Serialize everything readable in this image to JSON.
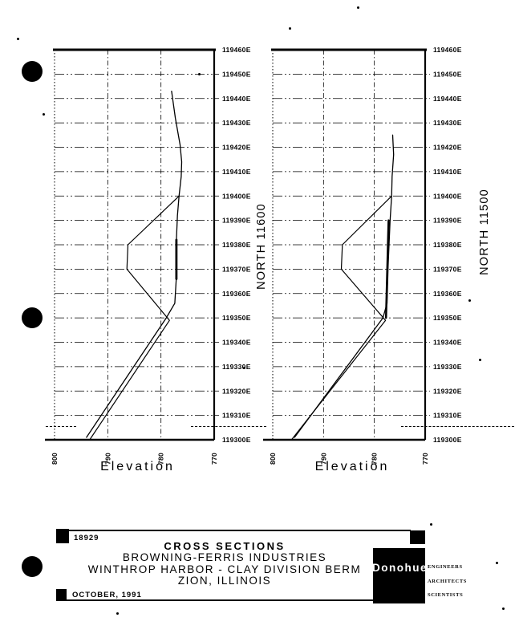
{
  "page": {
    "background": "#ffffff",
    "ink": "#000000"
  },
  "chart_data": [
    {
      "type": "line",
      "title": "NORTH 11600",
      "xlabel": "Elevation",
      "x_ticks": [
        800,
        790,
        780,
        770
      ],
      "xlim": [
        800,
        770
      ],
      "y_ticks": [
        119460,
        119450,
        119440,
        119430,
        119420,
        119410,
        119400,
        119390,
        119380,
        119370,
        119360,
        119350,
        119340,
        119330,
        119320,
        119310,
        119300
      ],
      "y_tick_suffix": "E",
      "ylim": [
        119300,
        119460
      ],
      "grid": true,
      "series": [
        {
          "name": "existing-ground",
          "width": 1.3,
          "points": [
            [
              778.0,
              119443
            ],
            [
              777.3,
              119432
            ],
            [
              776.4,
              119421
            ],
            [
              776.1,
              119414
            ],
            [
              776.2,
              119408
            ],
            [
              776.6,
              119400
            ],
            [
              776.9,
              119392
            ],
            [
              777.1,
              119382
            ],
            [
              777.1,
              119367
            ],
            [
              777.4,
              119356
            ],
            [
              779.0,
              119350
            ],
            [
              794.0,
              119301
            ]
          ]
        },
        {
          "name": "proposed-berm",
          "width": 1.2,
          "points": [
            [
              776.6,
              119400
            ],
            [
              786.2,
              119380
            ],
            [
              786.4,
              119370
            ],
            [
              778.4,
              119349
            ],
            [
              793.4,
              119300
            ]
          ]
        },
        {
          "name": "overlap-thick-segment",
          "width": 2.8,
          "points": [
            [
              777.1,
              119382
            ],
            [
              777.1,
              119366
            ]
          ]
        }
      ]
    },
    {
      "type": "line",
      "title": "NORTH 11500",
      "xlabel": "Elevation",
      "x_ticks": [
        800,
        790,
        780,
        770
      ],
      "xlim": [
        800,
        770
      ],
      "y_ticks": [
        119460,
        119450,
        119440,
        119430,
        119420,
        119410,
        119400,
        119390,
        119380,
        119370,
        119360,
        119350,
        119340,
        119330,
        119320,
        119310,
        119300
      ],
      "y_tick_suffix": "E",
      "ylim": [
        119300,
        119460
      ],
      "grid": true,
      "series": [
        {
          "name": "existing-ground",
          "width": 1.3,
          "points": [
            [
              776.4,
              119425
            ],
            [
              776.2,
              119417
            ],
            [
              776.5,
              119408
            ],
            [
              776.6,
              119400
            ],
            [
              776.9,
              119390
            ],
            [
              777.3,
              119371
            ],
            [
              777.5,
              119356
            ],
            [
              778.3,
              119350
            ],
            [
              795.7,
              119301
            ]
          ]
        },
        {
          "name": "proposed-berm",
          "width": 1.2,
          "points": [
            [
              776.6,
              119400
            ],
            [
              786.3,
              119380
            ],
            [
              786.5,
              119370
            ],
            [
              777.8,
              119349
            ],
            [
              796.3,
              119300
            ]
          ]
        },
        {
          "name": "overlap-thick-segment",
          "width": 2.5,
          "points": [
            [
              777.2,
              119390
            ],
            [
              777.7,
              119350
            ]
          ]
        }
      ]
    }
  ],
  "title_block": {
    "project_number": "18929",
    "title": "CROSS SECTIONS",
    "line2": "BROWNING-FERRIS INDUSTRIES",
    "line3": "WINTHROP HARBOR - CLAY DIVISION BERM",
    "line4": "ZION, ILLINOIS",
    "date": "OCTOBER, 1991"
  },
  "logo": {
    "name": "Donohue",
    "tags": [
      "ENGINEERS",
      "ARCHITECTS",
      "SCIENTISTS"
    ]
  }
}
